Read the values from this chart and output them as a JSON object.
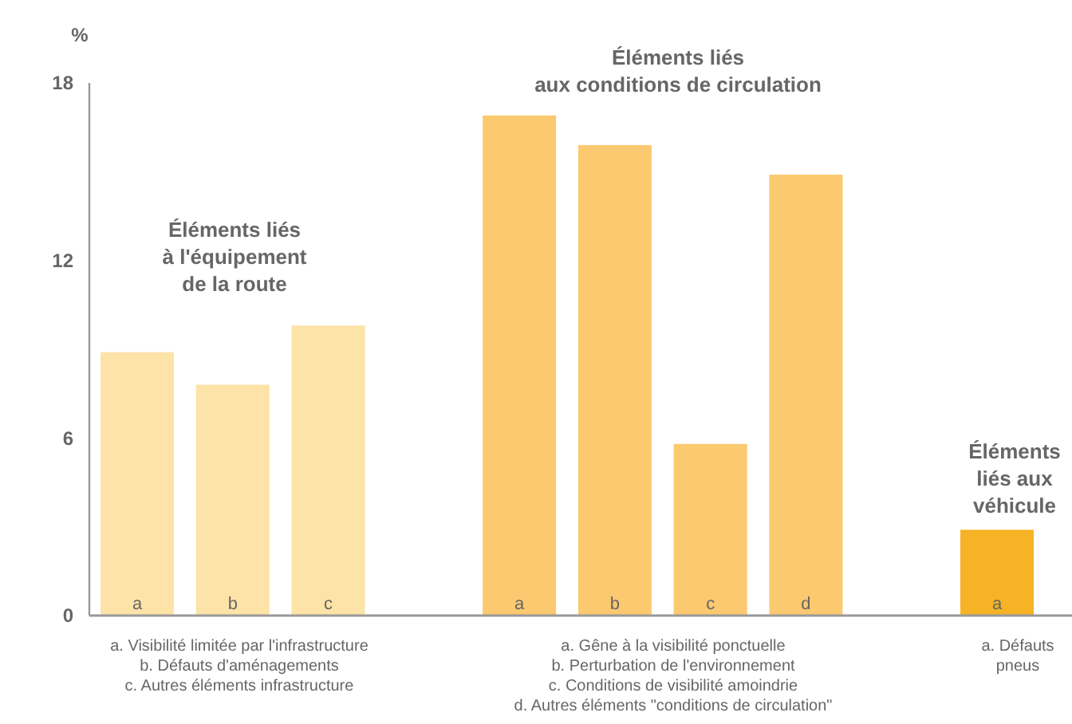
{
  "chart_data": {
    "type": "bar",
    "ylabel": "%",
    "categories": [
      "a",
      "b",
      "c",
      null,
      "a",
      "b",
      "c",
      "d",
      null,
      "a"
    ],
    "values": [
      8.9,
      7.8,
      9.8,
      null,
      16.9,
      15.9,
      5.8,
      14.9,
      null,
      2.9
    ],
    "colors": [
      "#fde3a7",
      "#fde3a7",
      "#fde3a7",
      null,
      "#fbc96f",
      "#fbc96f",
      "#fbc96f",
      "#fbc96f",
      null,
      "#f5b325"
    ],
    "ylim": [
      0,
      18
    ],
    "yticks": [
      0,
      6,
      12,
      18
    ],
    "grid": false,
    "annotations": [
      "Éléments liés\nà l'équipement\nde la route",
      "Éléments liés\naux conditions de circulation",
      "Éléments\nliés aux\nvéhicule",
      "a. Visibilité limitée par l'infrastructure\nb. Défauts d'aménagements\nc. Autres éléments infrastructure",
      "a. Gêne à la visibilité ponctuelle\nb. Perturbation de l'environnement\nc. Conditions de visibilité amoindrie\nd. Autres éléments \"conditions de circulation\"",
      "a. Défauts\npneus"
    ]
  }
}
